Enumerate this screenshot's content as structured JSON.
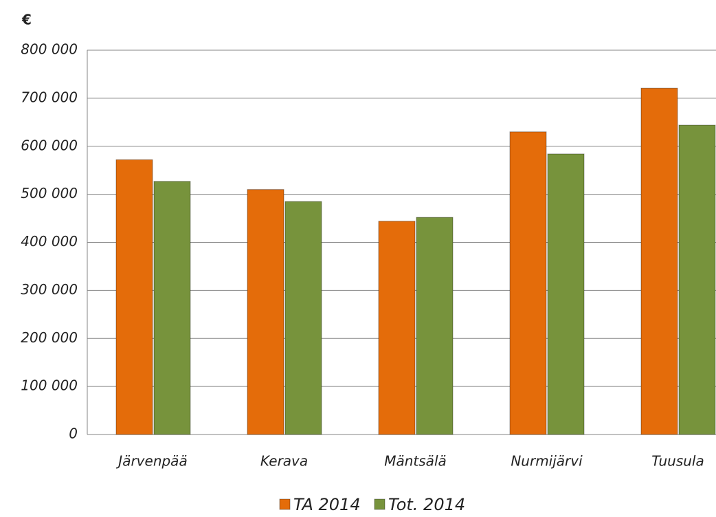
{
  "chart_data": {
    "type": "bar",
    "unit_label": "€",
    "categories": [
      "Järvenpää",
      "Kerava",
      "Mäntsälä",
      "Nurmijärvi",
      "Tuusula"
    ],
    "series": [
      {
        "name": "TA 2014",
        "color": "#e46c0a",
        "values": [
          572000,
          510000,
          444000,
          630000,
          721000
        ]
      },
      {
        "name": "Tot. 2014",
        "color": "#77933c",
        "values": [
          527000,
          485000,
          452000,
          584000,
          644000
        ]
      }
    ],
    "ylim": [
      0,
      800000
    ],
    "yticks": [
      0,
      {
        "value": 100000,
        "label": "100 000"
      },
      {
        "value": 200000,
        "label": "200 000"
      },
      {
        "value": 300000,
        "label": "300 000"
      },
      {
        "value": 400000,
        "label": "400 000"
      },
      {
        "value": 500000,
        "label": "500 000"
      },
      {
        "value": 600000,
        "label": "600 000"
      },
      {
        "value": 700000,
        "label": "700 000"
      },
      {
        "value": 800000,
        "label": "800 000"
      }
    ],
    "grid": true,
    "legend": "bottom"
  }
}
